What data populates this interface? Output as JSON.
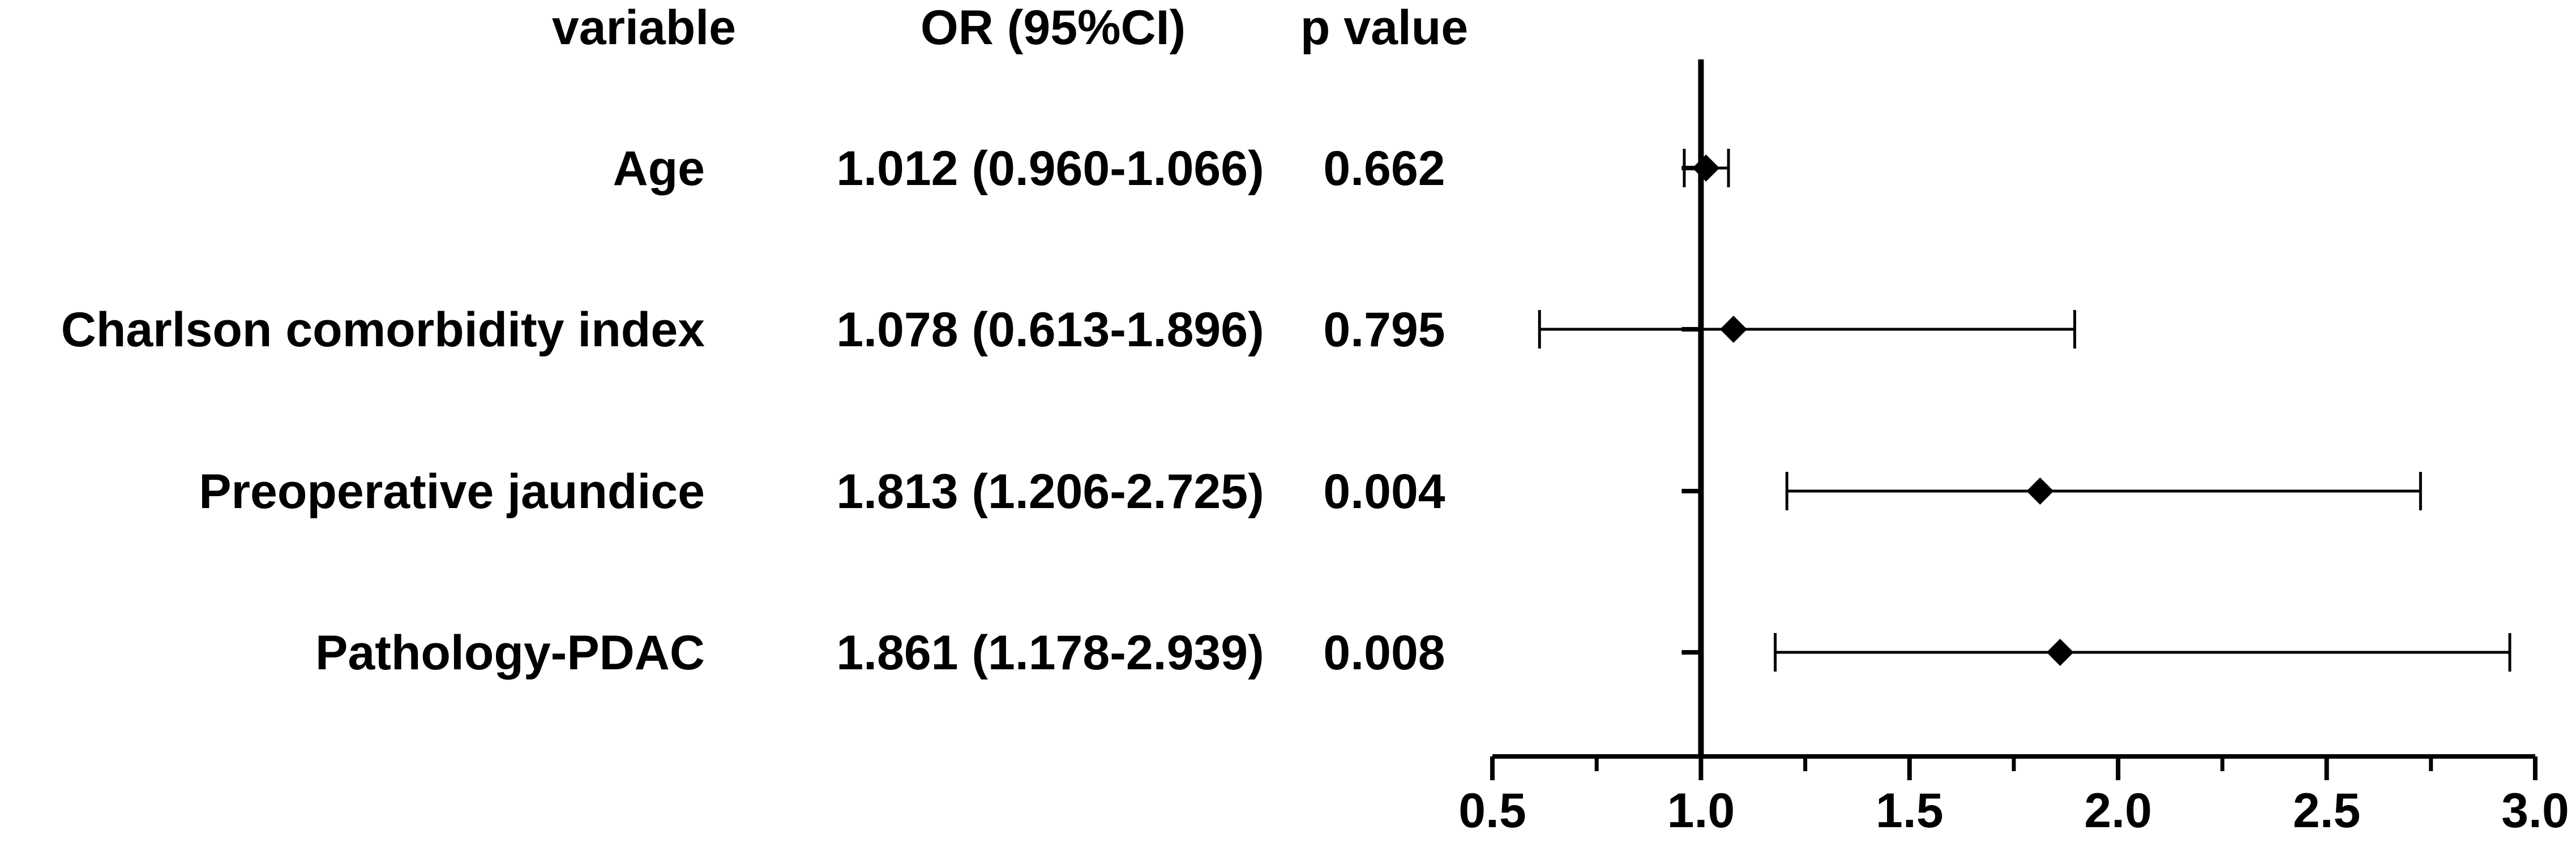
{
  "chart_data": {
    "type": "forest",
    "columns": {
      "variable": "variable",
      "or": "OR (95%CI)",
      "p": "p value"
    },
    "rows": [
      {
        "variable": "Age",
        "or_text": "1.012 (0.960-1.066)",
        "p_text": "0.662",
        "or": 1.012,
        "lo": 0.96,
        "hi": 1.066
      },
      {
        "variable": "Charlson comorbidity index",
        "or_text": "1.078 (0.613-1.896)",
        "p_text": "0.795",
        "or": 1.078,
        "lo": 0.613,
        "hi": 1.896
      },
      {
        "variable": "Preoperative jaundice",
        "or_text": "1.813 (1.206-2.725)",
        "p_text": "0.004",
        "or": 1.813,
        "lo": 1.206,
        "hi": 2.725
      },
      {
        "variable": "Pathology-PDAC",
        "or_text": "1.861 (1.178-2.939)",
        "p_text": "0.008",
        "or": 1.861,
        "lo": 1.178,
        "hi": 2.939
      }
    ],
    "xlim": [
      0.5,
      3.0
    ],
    "xticks": [
      "0.5",
      "1.0",
      "1.5",
      "2.0",
      "2.5",
      "3.0"
    ],
    "reference_line": 1.0,
    "marker": "diamond",
    "color": "#000000"
  }
}
